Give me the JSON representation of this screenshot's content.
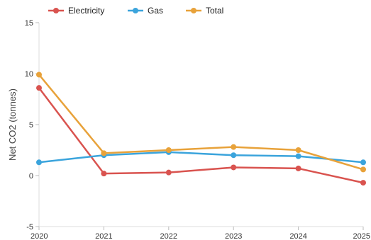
{
  "chart_data": {
    "type": "line",
    "title": "",
    "xlabel": "",
    "ylabel": "Net CO2 (tonnes)",
    "x": [
      "2020",
      "2021",
      "2022",
      "2023",
      "2024",
      "2025"
    ],
    "ylim": [
      -5,
      15
    ],
    "yticks": [
      "-5",
      "0",
      "5",
      "10",
      "15"
    ],
    "grid": false,
    "legend_position": "top",
    "series": [
      {
        "name": "Electricity",
        "color": "#d9534f",
        "values": [
          8.6,
          0.2,
          0.3,
          0.8,
          0.7,
          -0.7
        ]
      },
      {
        "name": "Gas",
        "color": "#3ba4dc",
        "values": [
          1.3,
          2.0,
          2.3,
          2.0,
          1.9,
          1.3
        ]
      },
      {
        "name": "Total",
        "color": "#e8a23a",
        "values": [
          9.9,
          2.2,
          2.5,
          2.8,
          2.5,
          0.6
        ]
      }
    ]
  }
}
